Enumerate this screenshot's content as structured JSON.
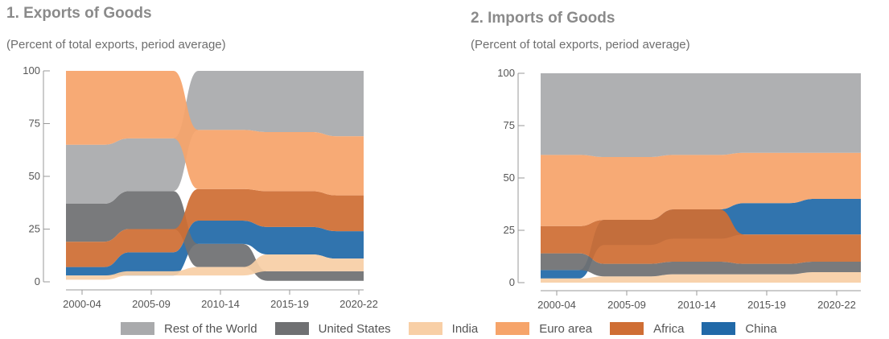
{
  "colors": {
    "rest_of_world": "#a9aaac",
    "united_states": "#6f7072",
    "india": "#f8cfa6",
    "euro_area": "#f6a46a",
    "africa": "#cf6e34",
    "china": "#2169a8"
  },
  "legend": [
    {
      "label": "Rest of the World",
      "color": "#a9aaac"
    },
    {
      "label": "United States",
      "color": "#6f7072"
    },
    {
      "label": "India",
      "color": "#f8cfa6"
    },
    {
      "label": "Euro area",
      "color": "#f6a46a"
    },
    {
      "label": "Africa",
      "color": "#cf6e34"
    },
    {
      "label": "China",
      "color": "#2169a8"
    }
  ],
  "chart_data": [
    {
      "type": "area",
      "subtype": "ranked-stacked-area (bump)",
      "title": "1. Exports of Goods",
      "subtitle": "(Percent of total exports, period average)",
      "categories": [
        "2000-04",
        "2005-09",
        "2010-14",
        "2015-19",
        "2020-22"
      ],
      "ylim": [
        0,
        100
      ],
      "yticks": [
        0,
        25,
        50,
        75,
        100
      ],
      "bands": [
        {
          "name": "China",
          "color": "#2169a8",
          "lower": [
            3,
            3,
            18,
            13,
            11
          ],
          "upper": [
            7,
            14,
            29,
            26,
            24
          ]
        },
        {
          "name": "United States",
          "color": "#6f7072",
          "lower": [
            19,
            25,
            7,
            0.5,
            0.5
          ],
          "upper": [
            37,
            43,
            18,
            5,
            5
          ]
        },
        {
          "name": "India",
          "color": "#f8cfa6",
          "lower": [
            1,
            3,
            3,
            5,
            5
          ],
          "upper": [
            3,
            5,
            7,
            13,
            11
          ]
        },
        {
          "name": "Africa",
          "color": "#cf6e34",
          "lower": [
            7,
            14,
            29,
            26,
            24
          ],
          "upper": [
            19,
            25,
            44,
            43,
            41
          ]
        },
        {
          "name": "Rest of the World",
          "color": "#a9aaac",
          "lower": [
            37,
            43,
            72,
            71,
            69
          ],
          "upper": [
            65,
            68,
            100,
            100,
            100
          ]
        },
        {
          "name": "Euro area",
          "color": "#f6a46a",
          "lower": [
            65,
            68,
            44,
            43,
            41
          ],
          "upper": [
            100,
            100,
            72,
            71,
            69
          ]
        }
      ]
    },
    {
      "type": "area",
      "subtype": "ranked-stacked-area (bump)",
      "title": "2. Imports of Goods",
      "subtitle": "(Percent of total exports, period average)",
      "categories": [
        "2000-04",
        "2005-09",
        "2010-14",
        "2015-19",
        "2020-22"
      ],
      "ylim": [
        0,
        100
      ],
      "yticks": [
        0,
        25,
        50,
        75,
        100
      ],
      "bands": [
        {
          "name": "India",
          "color": "#f8cfa6",
          "lower": [
            0,
            0,
            0,
            0,
            0
          ],
          "upper": [
            2,
            3,
            4,
            4,
            5
          ]
        },
        {
          "name": "China",
          "color": "#2169a8",
          "lower": [
            2,
            18,
            21,
            23,
            23
          ],
          "upper": [
            6,
            30,
            35,
            38,
            40
          ]
        },
        {
          "name": "United States",
          "color": "#6f7072",
          "lower": [
            6,
            3,
            4,
            4,
            5
          ],
          "upper": [
            14,
            9,
            10,
            9,
            10
          ]
        },
        {
          "name": "Africa",
          "color": "#cf6e34",
          "lower": [
            14,
            9,
            10,
            9,
            10
          ],
          "upper": [
            27,
            30,
            35,
            23,
            23
          ]
        },
        {
          "name": "Euro area",
          "color": "#f6a46a",
          "lower": [
            27,
            30,
            35,
            38,
            40
          ],
          "upper": [
            61,
            60,
            61,
            62,
            62
          ]
        },
        {
          "name": "Rest of the World",
          "color": "#a9aaac",
          "lower": [
            61,
            60,
            61,
            62,
            62
          ],
          "upper": [
            100,
            100,
            100,
            100,
            100
          ]
        }
      ]
    }
  ]
}
